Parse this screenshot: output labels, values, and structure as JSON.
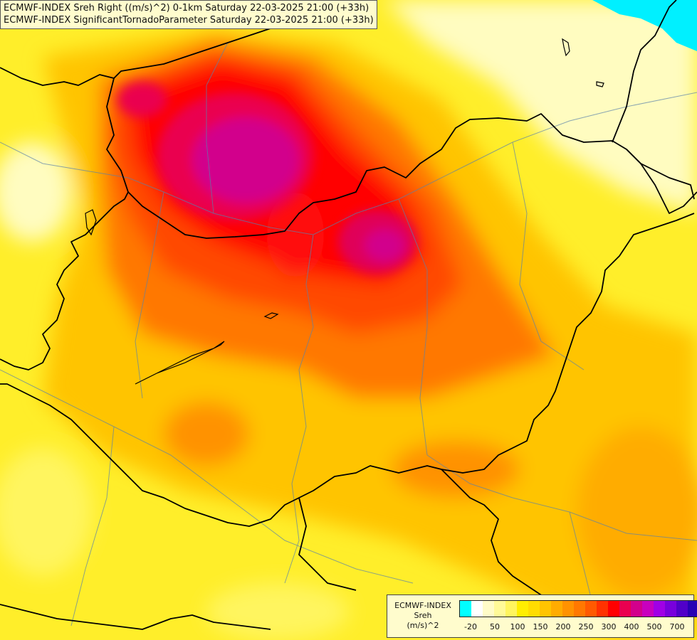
{
  "title": {
    "line1": "ECMWF-INDEX Sreh Right ((m/s)^2) 0-1km Saturday 22-03-2025 21:00 (+33h)",
    "line2": "ECMWF-INDEX SignificantTornadoParameter Saturday 22-03-2025 21:00 (+33h)"
  },
  "legend": {
    "line1": "ECMWF-INDEX",
    "line2": "Sreh",
    "line3": "(m/s)^2",
    "colors": [
      "#00ffff",
      "#ffffff",
      "#fffcc8",
      "#fffa98",
      "#fff55e",
      "#ffee00",
      "#ffdc00",
      "#ffc400",
      "#ffac00",
      "#ff9200",
      "#ff7800",
      "#ff5a00",
      "#ff3200",
      "#ff0000",
      "#ea0050",
      "#d2008c",
      "#c800be",
      "#a000e6",
      "#7800dc",
      "#5000c8",
      "#2800b4"
    ],
    "ticks": [
      "-20",
      "50",
      "100",
      "150",
      "200",
      "250",
      "300",
      "400",
      "500",
      "700"
    ]
  },
  "colors": {
    "sea": "#00f0ff",
    "border_line": "#000000",
    "river_line": "#5a82aa"
  }
}
